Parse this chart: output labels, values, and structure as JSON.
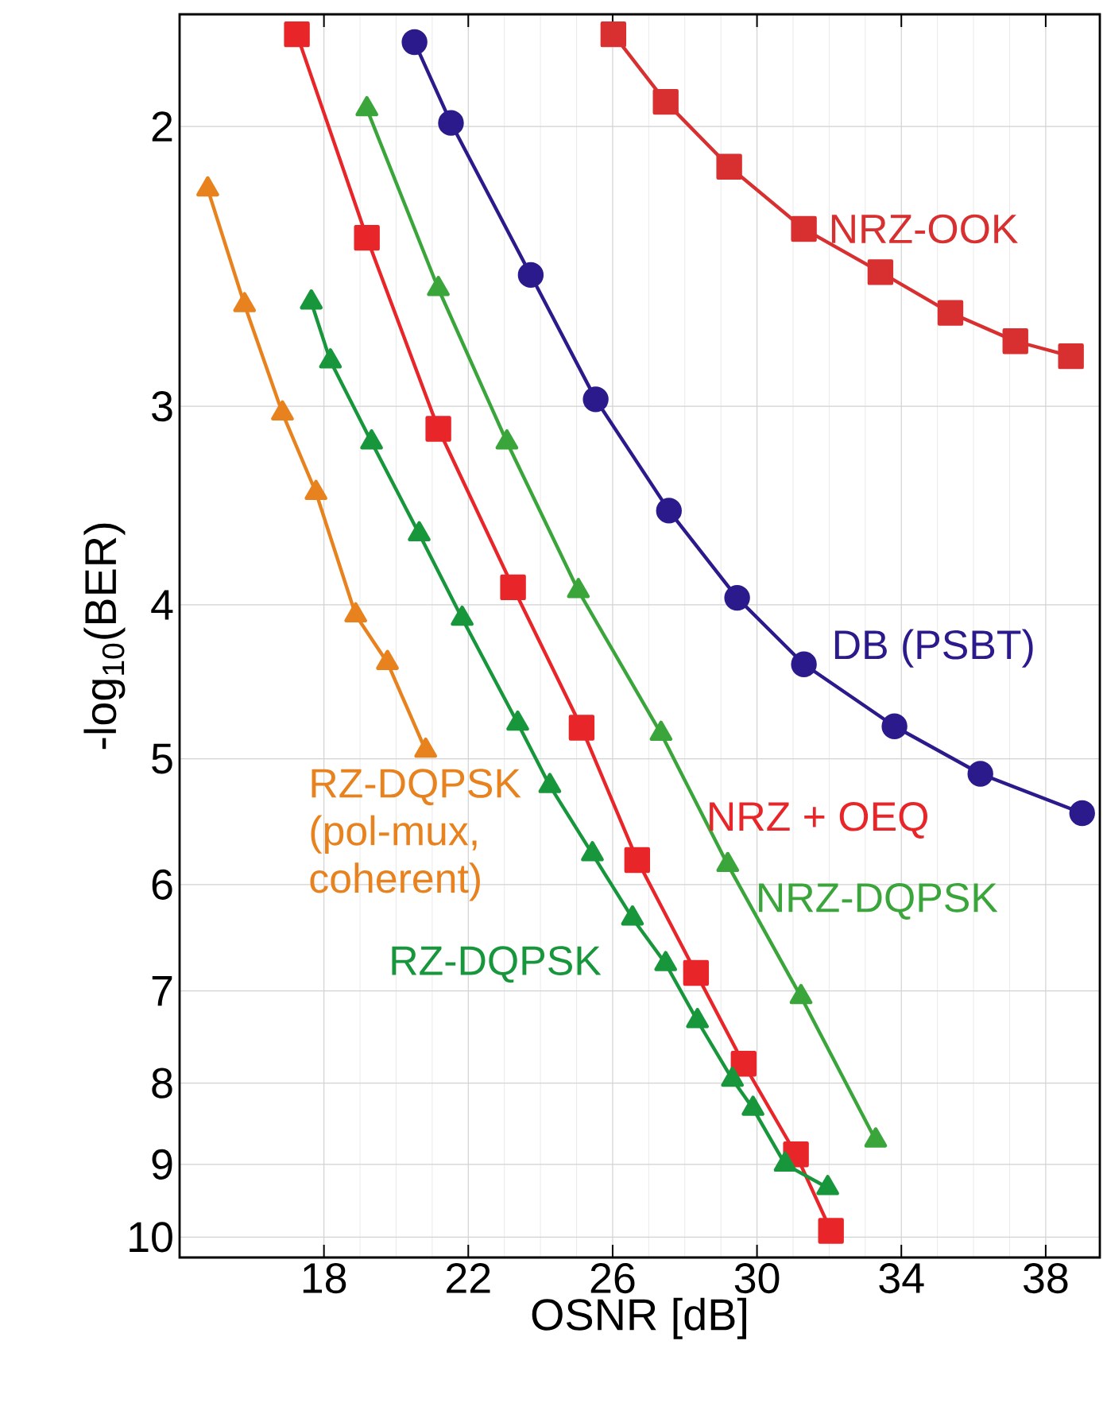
{
  "chart_data": {
    "type": "line",
    "xlabel": "OSNR [dB]",
    "ylabel": "-log$_{10}$(BER)",
    "log": "y",
    "grid": true,
    "legend": false,
    "xlim": [
      14,
      39.5
    ],
    "xticks": [
      18,
      22,
      26,
      30,
      34,
      38
    ],
    "ylim": [
      10.3,
      1.7
    ],
    "yticks": [
      2,
      3,
      4,
      5,
      6,
      7,
      8,
      9,
      10
    ],
    "series": [
      {
        "name": "RZ-DQPSK (pol-mux, coherent)",
        "color": "#e8821e",
        "marker": "triangle",
        "x": [
          14.78,
          15.8,
          16.85,
          17.78,
          18.88,
          19.76,
          20.82
        ],
        "values": [
          2.19,
          2.59,
          3.03,
          3.4,
          4.06,
          4.35,
          4.94
        ]
      },
      {
        "name": "NRZ + OEQ",
        "color": "#e8262a",
        "marker": "square",
        "x": [
          17.25,
          19.19,
          21.17,
          23.24,
          25.14,
          26.68,
          28.31,
          29.63,
          31.08,
          32.05
        ],
        "values": [
          1.75,
          2.35,
          3.1,
          3.9,
          4.78,
          5.79,
          6.82,
          7.78,
          8.87,
          9.91
        ]
      },
      {
        "name": "NRZ-DQPSK",
        "color": "#3aa53a",
        "marker": "triangle",
        "x": [
          19.19,
          21.17,
          23.07,
          25.05,
          27.34,
          29.19,
          31.22,
          33.29
        ],
        "values": [
          1.95,
          2.53,
          3.16,
          3.92,
          4.82,
          5.83,
          7.06,
          8.69
        ]
      },
      {
        "name": "RZ-DQPSK",
        "color": "#17963c",
        "marker": "triangle",
        "x": [
          17.65,
          18.18,
          19.32,
          20.64,
          21.83,
          23.37,
          24.26,
          25.44,
          26.55,
          27.47,
          28.35,
          29.32,
          29.89,
          30.78,
          31.96
        ],
        "values": [
          2.58,
          2.81,
          3.16,
          3.61,
          4.08,
          4.75,
          5.2,
          5.74,
          6.3,
          6.73,
          7.31,
          7.96,
          8.3,
          9.0,
          9.31
        ]
      },
      {
        "name": "DB (PSBT)",
        "color": "#2a1a8c",
        "marker": "circle",
        "x": [
          20.51,
          21.52,
          23.73,
          25.53,
          27.56,
          29.45,
          31.3,
          33.81,
          36.19,
          39.01
        ],
        "values": [
          1.77,
          1.99,
          2.48,
          2.97,
          3.49,
          3.96,
          4.36,
          4.77,
          5.11,
          5.41
        ]
      },
      {
        "name": "NRZ-OOK",
        "color": "#d83030",
        "marker": "square",
        "x": [
          26.02,
          27.47,
          29.23,
          31.3,
          33.42,
          35.36,
          37.16,
          38.7
        ],
        "values": [
          1.75,
          1.93,
          2.12,
          2.32,
          2.47,
          2.62,
          2.73,
          2.79
        ]
      }
    ]
  }
}
